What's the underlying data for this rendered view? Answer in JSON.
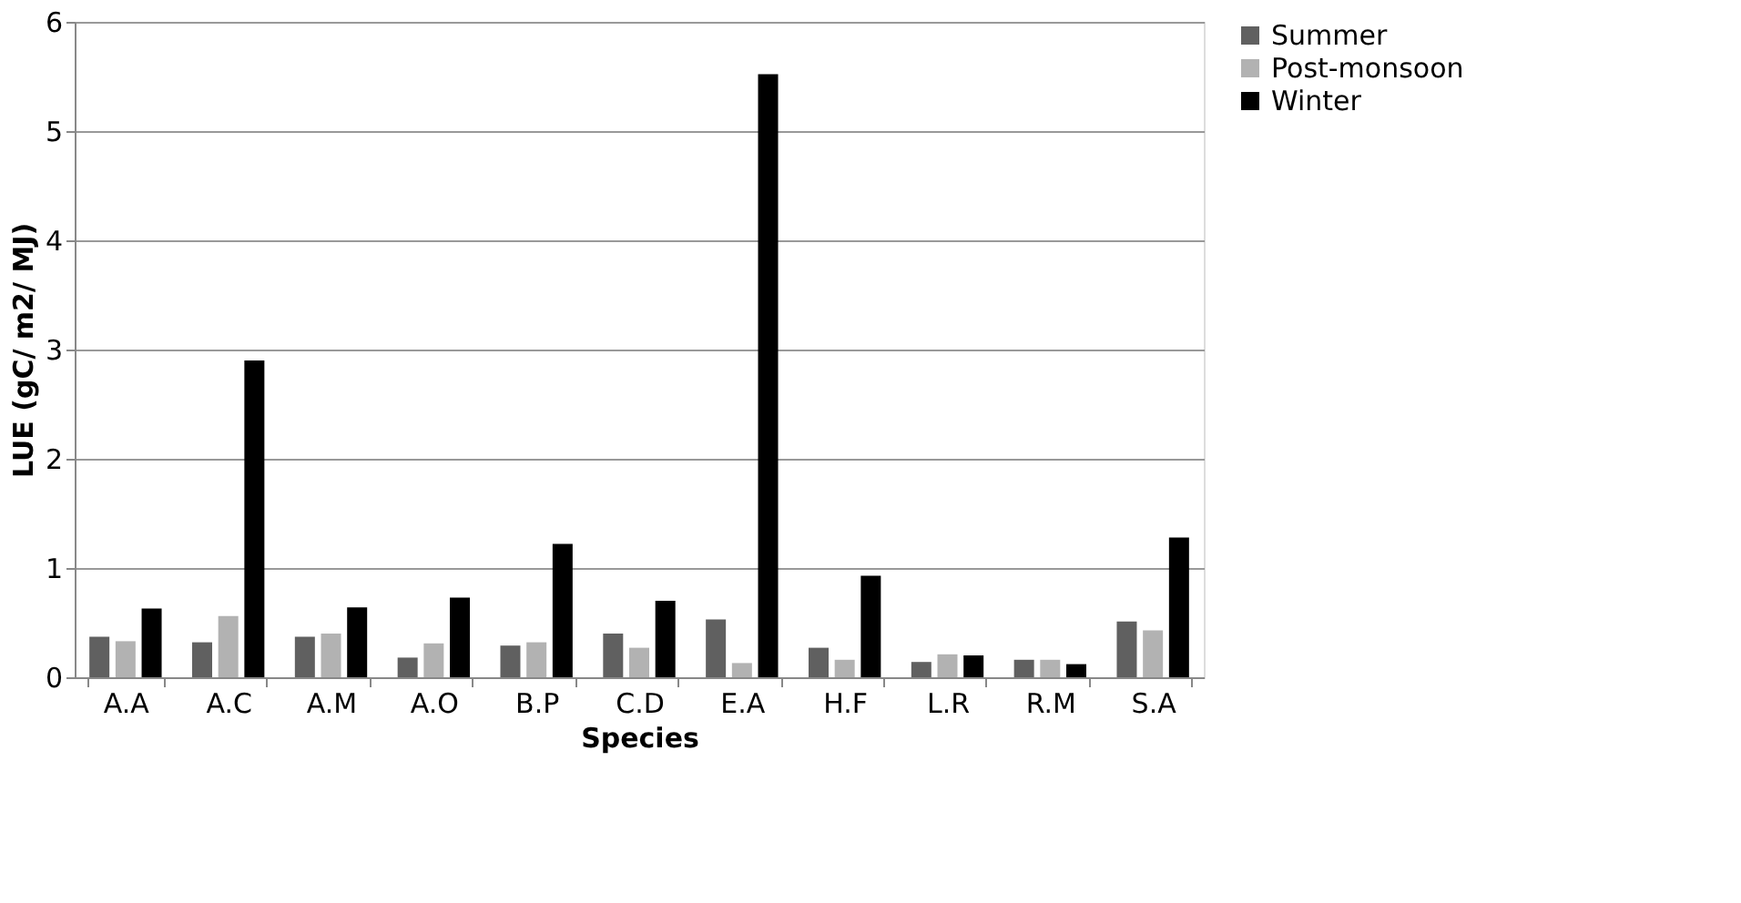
{
  "chart_data": {
    "type": "bar",
    "xlabel": "Species",
    "ylabel": "LUE (gC/ m2/ MJ)",
    "categories": [
      "A.A",
      "A.C",
      "A.M",
      "A.O",
      "B.P",
      "C.D",
      "E.A",
      "H.F",
      "L.R",
      "R.M",
      "S.A"
    ],
    "series": [
      {
        "name": "Summer",
        "color": "#606060",
        "values": [
          0.37,
          0.32,
          0.37,
          0.18,
          0.29,
          0.4,
          0.53,
          0.27,
          0.14,
          0.16,
          0.51
        ]
      },
      {
        "name": "Post-monsoon",
        "color": "#b2b2b2",
        "values": [
          0.33,
          0.56,
          0.4,
          0.31,
          0.32,
          0.27,
          0.13,
          0.16,
          0.21,
          0.16,
          0.43
        ]
      },
      {
        "name": "Winter",
        "color": "#000000",
        "values": [
          0.63,
          2.9,
          0.64,
          0.73,
          1.22,
          0.7,
          5.52,
          0.93,
          0.2,
          0.12,
          1.28
        ]
      }
    ],
    "ylim": [
      0,
      6
    ],
    "yticks": [
      0,
      1,
      2,
      3,
      4,
      5,
      6
    ],
    "grid": "y",
    "legend": "right"
  }
}
